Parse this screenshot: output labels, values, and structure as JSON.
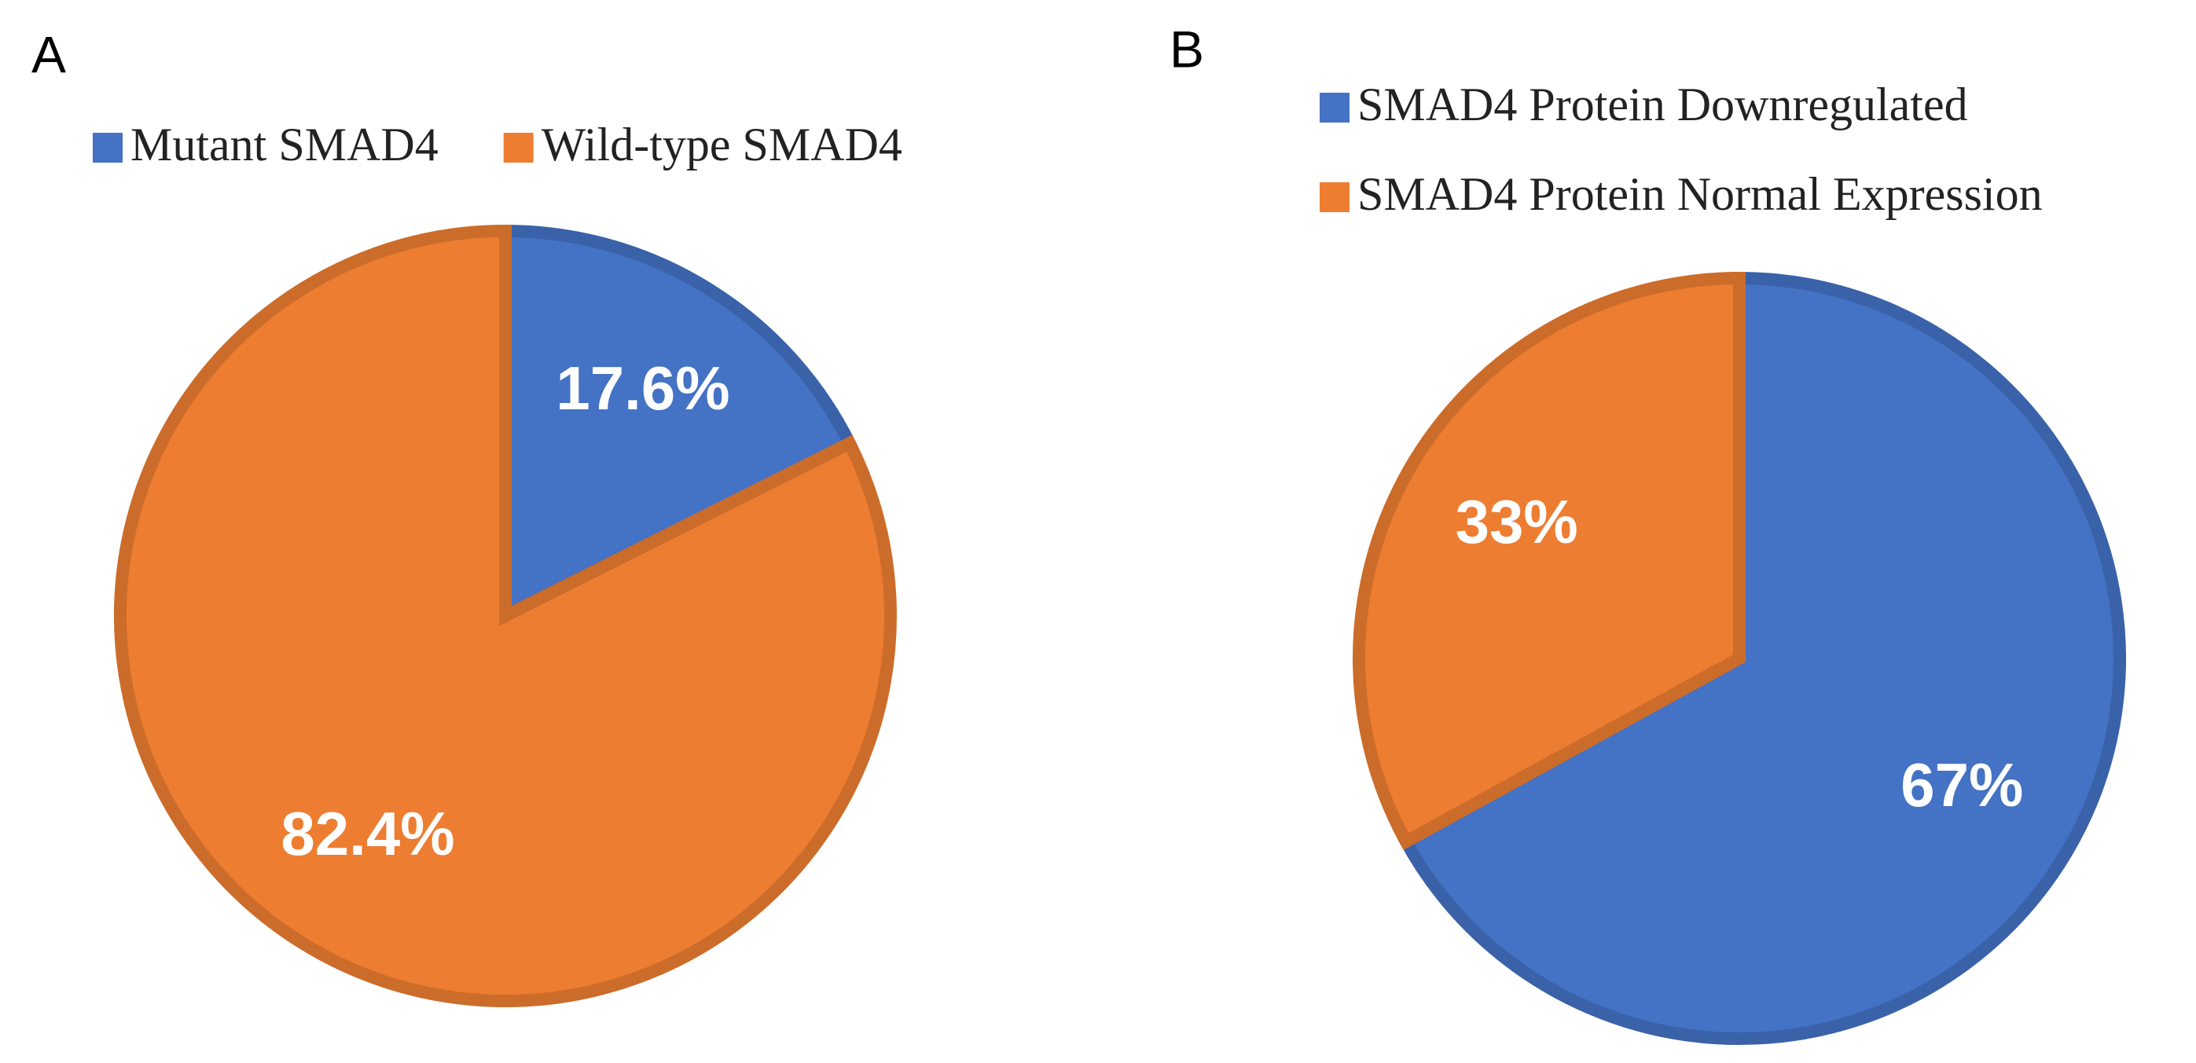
{
  "chart_data": [
    {
      "type": "pie",
      "title": "A",
      "categories": [
        "Mutant SMAD4",
        "Wild-type SMAD4"
      ],
      "values": [
        17.6,
        82.4
      ],
      "value_labels": [
        "17.6%",
        "82.4%"
      ],
      "colors": [
        "#4472c4",
        "#ed7d31"
      ],
      "legend": "top",
      "legend_orientation": "horizontal"
    },
    {
      "type": "pie",
      "title": "B",
      "categories": [
        "SMAD4 Protein Downregulated",
        "SMAD4 Protein Normal Expression"
      ],
      "values": [
        67,
        33
      ],
      "value_labels": [
        "67%",
        "33%"
      ],
      "colors": [
        "#4472c4",
        "#ed7d31"
      ],
      "legend": "top",
      "legend_orientation": "vertical"
    }
  ]
}
